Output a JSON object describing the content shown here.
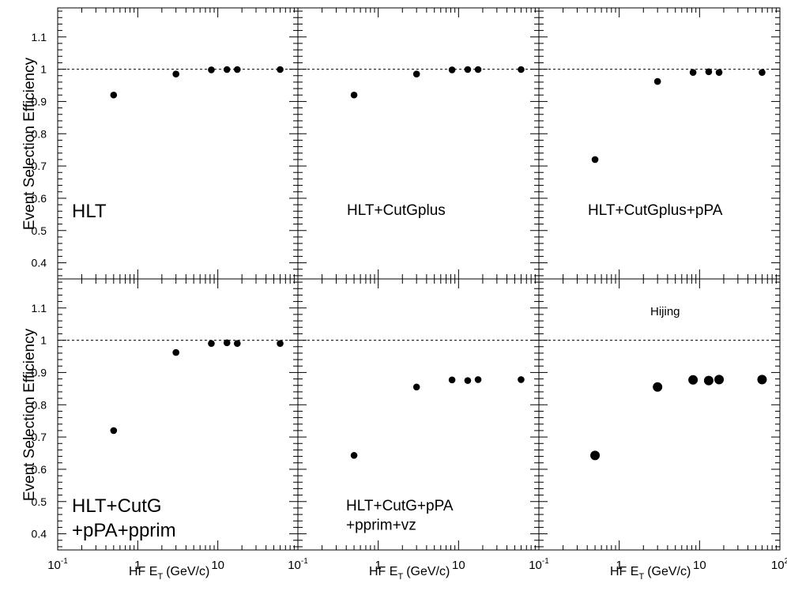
{
  "ylabel": "Event Selection Efficiency",
  "xlabel_main": "HF E",
  "xlabel_sub": "T",
  "xlabel_unit": "(GeV/c)",
  "y_tick_labels": [
    "0.4",
    "0.5",
    "0.6",
    "0.7",
    "0.8",
    "0.9",
    "1",
    "1.1"
  ],
  "x_tick_labels": [
    {
      "base": "10",
      "exp": "-1"
    },
    {
      "base": "1",
      "exp": ""
    },
    {
      "base": "10",
      "exp": ""
    },
    {
      "base": "10",
      "exp": "2"
    }
  ],
  "chart_data": {
    "type": "scatter",
    "x_scale": "log",
    "xlim": [
      0.1,
      100
    ],
    "ylim": [
      0.35,
      1.19
    ],
    "reference_line_y": 1.0,
    "reference_line_style": "dashed",
    "x": [
      0.5,
      3.0,
      8.3,
      13.0,
      17.5,
      60.0
    ],
    "panels": [
      {
        "label_lines": [
          "HLT"
        ],
        "label_size": "large",
        "values": [
          0.92,
          0.985,
          0.998,
          0.999,
          0.999,
          0.999
        ]
      },
      {
        "label_lines": [
          "HLT+CutGplus"
        ],
        "label_size": "medium",
        "values": [
          0.92,
          0.985,
          0.998,
          0.999,
          0.999,
          0.999
        ]
      },
      {
        "label_lines": [
          "HLT+CutGplus+pPA"
        ],
        "label_size": "medium",
        "values": [
          0.72,
          0.962,
          0.99,
          0.992,
          0.99,
          0.99
        ]
      },
      {
        "label_lines": [
          "HLT+CutG",
          "+pPA+pprim"
        ],
        "label_size": "large",
        "values": [
          0.72,
          0.962,
          0.99,
          0.992,
          0.99,
          0.99
        ]
      },
      {
        "label_lines": [
          "HLT+CutG+pPA",
          "+pprim+vz"
        ],
        "label_size": "medium",
        "values": [
          0.643,
          0.855,
          0.877,
          0.875,
          0.878,
          0.878
        ]
      },
      {
        "label_lines": [
          "Hijing"
        ],
        "label_size": "small",
        "values": [
          0.643,
          0.855,
          0.877,
          0.875,
          0.878,
          0.878
        ]
      }
    ]
  }
}
